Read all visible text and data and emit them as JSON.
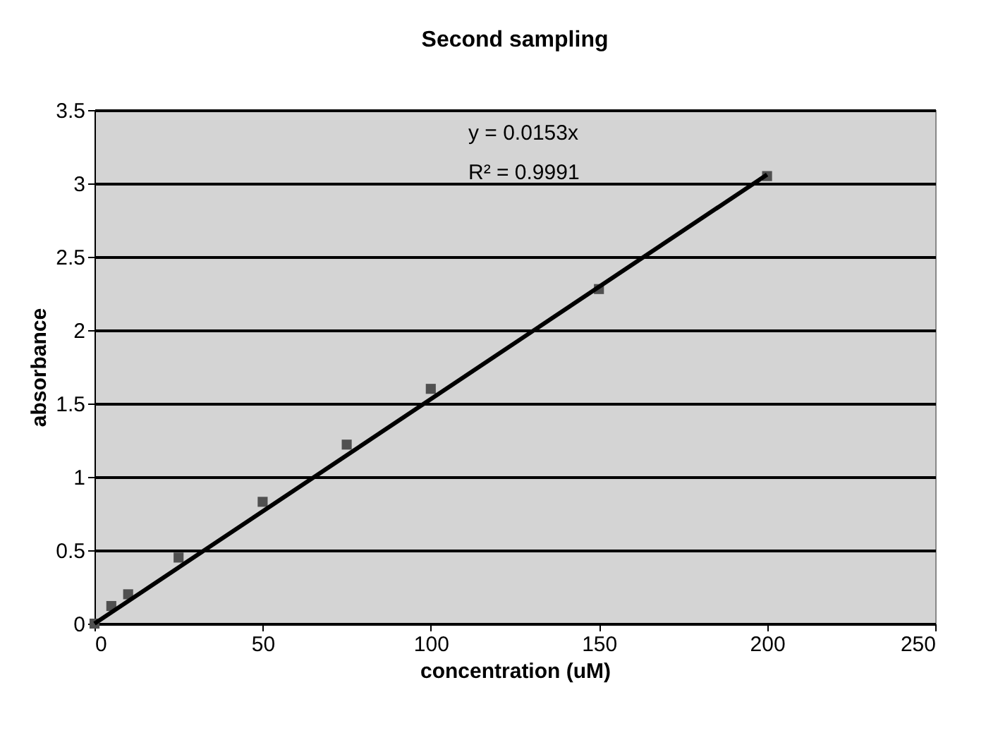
{
  "chart_data": {
    "type": "scatter",
    "title": "Second sampling",
    "xlabel": "concentration (uM)",
    "ylabel": "absorbance",
    "series": [
      {
        "marker": "square",
        "color": "#505050",
        "x": [
          0,
          5,
          10,
          25,
          50,
          75,
          100,
          150,
          200
        ],
        "values": [
          0,
          0.12,
          0.2,
          0.45,
          0.83,
          1.22,
          1.6,
          2.28,
          3.05
        ]
      },
      {
        "type": "line",
        "marker": "none",
        "color": "#000000",
        "x": [
          0,
          200
        ],
        "values": [
          0,
          3.06
        ]
      }
    ],
    "annotations": [
      "y = 0.0153x",
      "R² = 0.9991"
    ],
    "xlim": [
      0,
      250
    ],
    "xticks": [
      0,
      50,
      100,
      150,
      200,
      250
    ],
    "ylim": [
      0,
      3.5
    ],
    "yticks": [
      0,
      0.5,
      1,
      1.5,
      2,
      2.5,
      3,
      3.5
    ],
    "grid": "y",
    "legend": false
  }
}
